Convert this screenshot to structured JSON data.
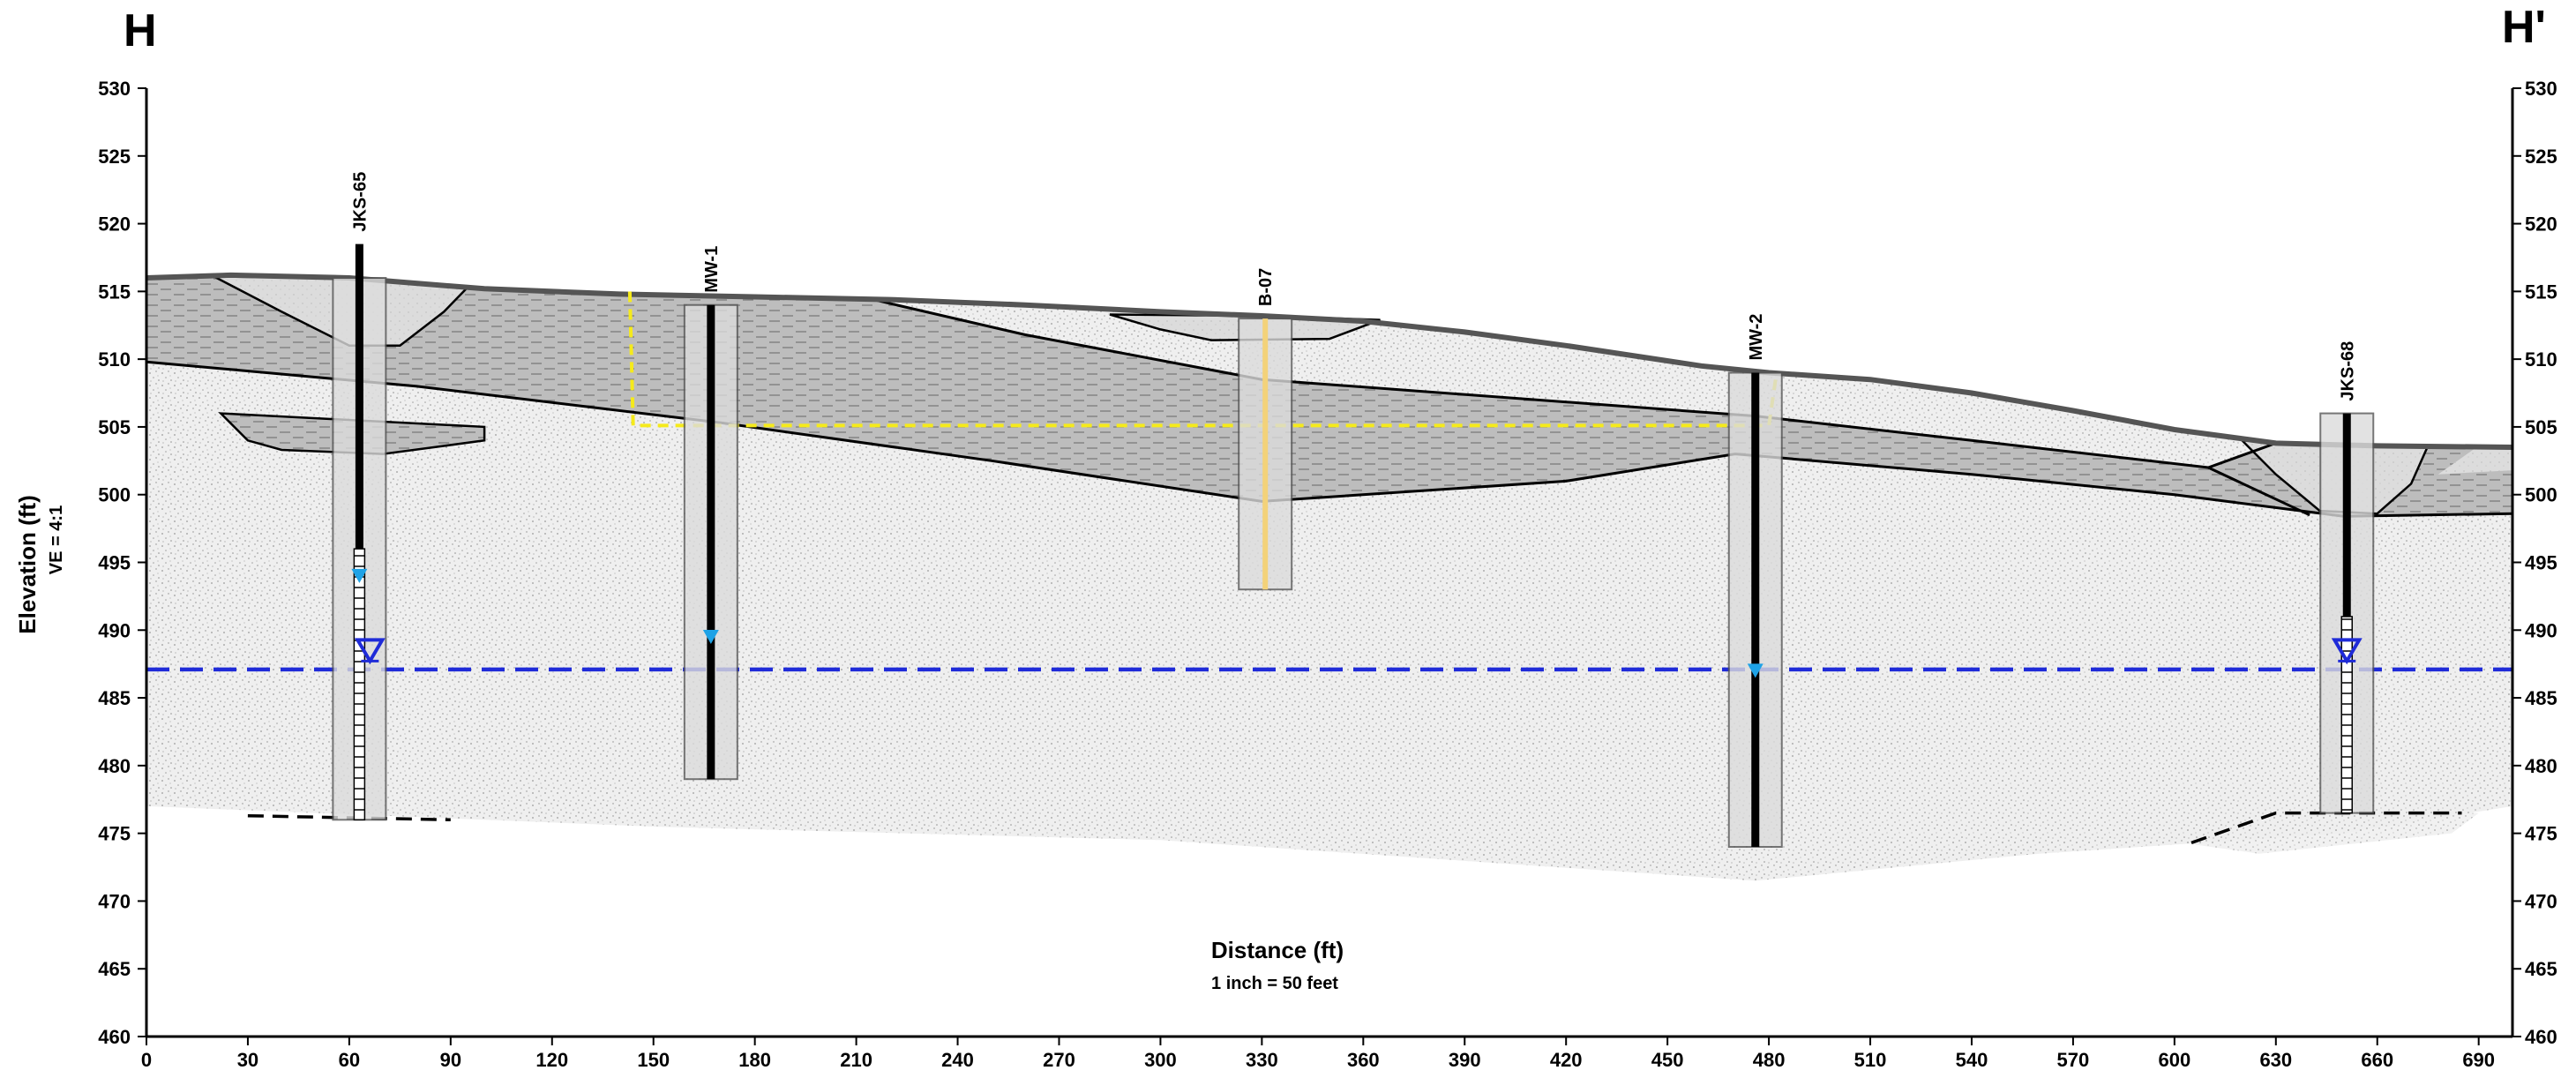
{
  "section": {
    "left_label": "H",
    "right_label": "H'",
    "ylabel": "Elevation (ft)",
    "vertical_exaggeration": "VE = 4:1",
    "xlabel": "Distance (ft)",
    "scale": "1 inch = 50 feet"
  },
  "chart_data": {
    "type": "cross-section",
    "xlim": [
      0,
      700
    ],
    "ylim": [
      460,
      530
    ],
    "x_ticks": [
      0,
      30,
      60,
      90,
      120,
      150,
      180,
      210,
      240,
      270,
      300,
      330,
      360,
      390,
      420,
      450,
      480,
      510,
      540,
      570,
      600,
      630,
      660,
      690
    ],
    "y_ticks": [
      460,
      465,
      470,
      475,
      480,
      485,
      490,
      495,
      500,
      505,
      510,
      515,
      520,
      525,
      530
    ],
    "ground_surface": [
      [
        0,
        516.0
      ],
      [
        25,
        516.2
      ],
      [
        60,
        516.0
      ],
      [
        100,
        515.2
      ],
      [
        140,
        514.8
      ],
      [
        180,
        514.6
      ],
      [
        220,
        514.4
      ],
      [
        260,
        514.0
      ],
      [
        300,
        513.5
      ],
      [
        330,
        513.2
      ],
      [
        360,
        512.8
      ],
      [
        390,
        512.0
      ],
      [
        420,
        511.0
      ],
      [
        460,
        509.5
      ],
      [
        480,
        509.0
      ],
      [
        510,
        508.5
      ],
      [
        540,
        507.5
      ],
      [
        570,
        506.2
      ],
      [
        600,
        504.8
      ],
      [
        630,
        503.8
      ],
      [
        660,
        503.6
      ],
      [
        700,
        503.5
      ]
    ],
    "water_table": {
      "elevation": 487.1,
      "x_range": [
        0,
        700
      ],
      "style": "dashed",
      "color": "#1f2bd8"
    },
    "wells": [
      {
        "name": "JKS-65",
        "x": 63,
        "top": 518.5,
        "bottom": 476.0,
        "screen_top": 496.0,
        "screen_bottom": 476.0,
        "water_level": 494.0,
        "water_marker": 488.5
      },
      {
        "name": "MW-1",
        "x": 167,
        "top": 514.0,
        "bottom": 479.0,
        "water_level": 489.5
      },
      {
        "name": "B-07",
        "x": 331,
        "top": 513.0,
        "bottom": 493.0
      },
      {
        "name": "MW-2",
        "x": 476,
        "top": 509.0,
        "bottom": 474.0,
        "water_level": 487.0
      },
      {
        "name": "JKS-68",
        "x": 651,
        "top": 506.0,
        "bottom": 476.5,
        "screen_top": 491.0,
        "screen_bottom": 476.5,
        "water_marker": 488.5
      }
    ],
    "colors": {
      "fill_sand": "#efefef",
      "fill_clay": "#b5b5b5",
      "fill_fill": "#e0e0e0",
      "casing": "#000000",
      "water_table": "#1f2bd8",
      "water_marker": "#1ea2e6",
      "dashed_outline": "#f5ea1b"
    }
  }
}
